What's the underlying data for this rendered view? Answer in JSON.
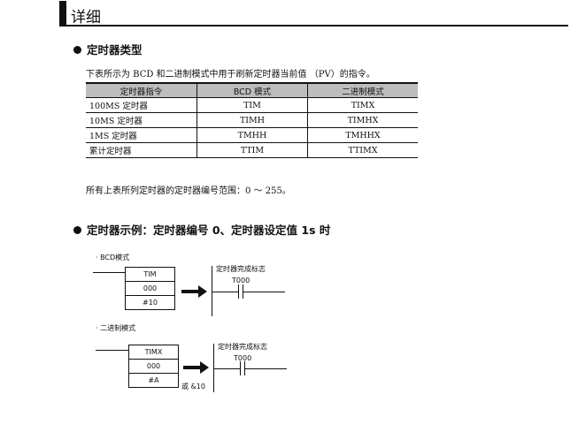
{
  "header": {
    "title": "详细"
  },
  "section1": {
    "heading": "定时器类型",
    "intro": "下表所示为 BCD 和二进制模式中用于刷新定时器当前值 （PV）的指令。",
    "table": {
      "headers": [
        "定时器指令",
        "BCD 模式",
        "二进制模式"
      ],
      "rows": [
        [
          "100MS 定时器",
          "TIM",
          "TIMX"
        ],
        [
          "10MS 定时器",
          "TIMH",
          "TIMHX"
        ],
        [
          "1MS 定时器",
          "TMHH",
          "TMHHX"
        ],
        [
          "累计定时器",
          "TTIM",
          "TTIMX"
        ]
      ]
    },
    "note": "所有上表所列定时器的定时器编号范围：0 ～ 255。"
  },
  "section2": {
    "heading": "定时器示例：定时器编号 0、定时器设定值 1s 时",
    "bcd": {
      "label": "· BCD模式",
      "box": [
        "TIM",
        "000",
        "#10"
      ],
      "flag_label": "定时器完成标志",
      "contact": "T000"
    },
    "binary": {
      "label": "· 二进制模式",
      "box": [
        "TIMX",
        "000",
        "#A"
      ],
      "alt": "或 &10",
      "flag_label": "定时器完成标志",
      "contact": "T000"
    }
  }
}
